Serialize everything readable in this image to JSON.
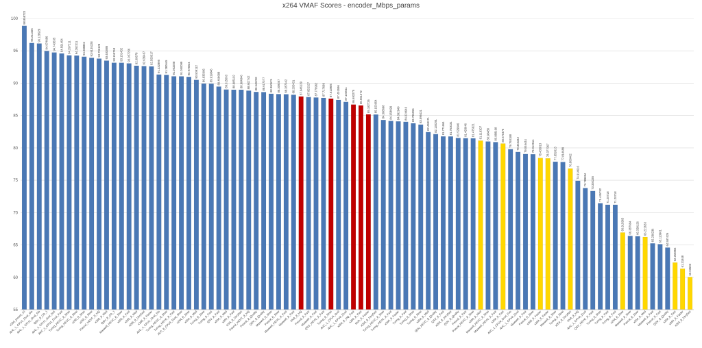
{
  "chart_data": {
    "type": "bar",
    "title": "x264 VMAF Scores - encoder_Mbps_params",
    "xlabel": "",
    "ylabel": "",
    "ylim": [
      55,
      100
    ],
    "yticks": [
      55,
      60,
      65,
      70,
      75,
      80,
      85,
      90,
      95,
      100
    ],
    "grid": true,
    "legend": "none",
    "colors": {
      "blue": "#4a78b5",
      "red": "#c00000",
      "yellow": "#ffd700"
    },
    "bars": [
      {
        "label": "x264_preset_10",
        "value": 98.858723,
        "value_text": "98.858723",
        "color": "blue"
      },
      {
        "label": "AVC_1_CPU1_Dual_Slo",
        "value": 96.211405,
        "value_text": "96.211405",
        "color": "blue"
      },
      {
        "label": "AVC_1_CPU1_Dual_Slo",
        "value": 96.128929,
        "value_text": "96.128929",
        "color": "blue"
      },
      {
        "label": "QSV_8_CD_1",
        "value": 94.974686,
        "value_text": "94.974686",
        "color": "blue"
      },
      {
        "label": "AVC_1_CPU1_dual_fast",
        "value": 94.743635,
        "value_text": "94.743635",
        "color": "blue"
      },
      {
        "label": "AVC_1_CPU1_Dual_Fast",
        "value": 94.591454,
        "value_text": "94.591454",
        "color": "blue"
      },
      {
        "label": "Turing_HEVC_8_Slow",
        "value": 94.297211,
        "value_text": "94.297211",
        "color": "blue"
      },
      {
        "label": "Turing_HEVC_8_Slow",
        "value": 94.262311,
        "value_text": "94.262311",
        "color": "blue"
      },
      {
        "label": "x265_8_Slow",
        "value": 94.088804,
        "value_text": "94.088804",
        "color": "blue"
      },
      {
        "label": "x265_8_Slow",
        "value": 93.9135328,
        "value_text": "93.9135328",
        "color": "blue"
      },
      {
        "label": "Pascal_HEVC_8_HQ",
        "value": 93.796128,
        "value_text": "93.796128",
        "color": "blue"
      },
      {
        "label": "x265_8_Med",
        "value": 93.483885,
        "value_text": "93.483885",
        "color": "blue"
      },
      {
        "label": "QSV_8_CD_1",
        "value": 93.155763,
        "value_text": "93.155763",
        "color": "blue"
      },
      {
        "label": "Maxwell_HEVC_8_Slow",
        "value": 93.151432,
        "value_text": "93.151432",
        "color": "blue"
      },
      {
        "label": "x265_8_Fast",
        "value": 93.057256,
        "value_text": "93.057256",
        "color": "blue"
      },
      {
        "label": "x265_8_Med",
        "value": 92.69678,
        "value_text": "92.69678",
        "color": "blue"
      },
      {
        "label": "x265_8_Veryfast",
        "value": 92.636467,
        "value_text": "92.636467",
        "color": "blue"
      },
      {
        "label": "x265_8_Faster",
        "value": 92.593317,
        "value_text": "92.593317",
        "color": "blue"
      },
      {
        "label": "AVC_1_CPU1_Dual_Slo",
        "value": 91.332895,
        "value_text": "91.332895",
        "color": "blue"
      },
      {
        "label": "Turing_HEVC_8_Slow",
        "value": 91.280645,
        "value_text": "91.280645",
        "color": "blue"
      },
      {
        "label": "Turing_HEVC_8_Fast",
        "value": 91.053208,
        "value_text": "91.053208",
        "color": "blue"
      },
      {
        "label": "AVC_8_CPU4_Dual_Slow",
        "value": 91.050099,
        "value_text": "91.050099",
        "color": "blue"
      },
      {
        "label": "x264_8_Slow",
        "value": 90.973824,
        "value_text": "90.973824",
        "color": "blue"
      },
      {
        "label": "x264_8_Med",
        "value": 90.509112,
        "value_text": "90.509112",
        "color": "blue"
      },
      {
        "label": "Turing_8_Slow",
        "value": 89.935696,
        "value_text": "89.935696",
        "color": "blue"
      },
      {
        "label": "Turing_8_Fast",
        "value": 89.919846,
        "value_text": "89.919846",
        "color": "blue"
      },
      {
        "label": "QSV_8_Fast",
        "value": 89.468688,
        "value_text": "89.468688",
        "color": "blue"
      },
      {
        "label": "x264_8_Med",
        "value": 89.015063,
        "value_text": "89.015063",
        "color": "blue"
      },
      {
        "label": "x264_8_Fast",
        "value": 88.985102,
        "value_text": "88.985102",
        "color": "blue"
      },
      {
        "label": "NVA_8_Veryfast",
        "value": 88.984846,
        "value_text": "88.984846",
        "color": "blue"
      },
      {
        "label": "Pascal_HEVC_8_HQ",
        "value": 88.842742,
        "value_text": "88.842742",
        "color": "blue"
      },
      {
        "label": "Pascal_8_Quality",
        "value": 88.645228,
        "value_text": "88.645228",
        "color": "blue"
      },
      {
        "label": "QSV_8_Quality",
        "value": 88.617377,
        "value_text": "88.617377",
        "color": "blue"
      },
      {
        "label": "Maxwell_8_Slow",
        "value": 88.360676,
        "value_text": "88.360676",
        "color": "blue"
      },
      {
        "label": "Pascal_8_Slow",
        "value": 88.309357,
        "value_text": "88.309357",
        "color": "blue"
      },
      {
        "label": "Maxwell_HEVC_8_Fast",
        "value": 88.287042,
        "value_text": "88.287042",
        "color": "blue"
      },
      {
        "label": "Maxwell_8_Fast",
        "value": 88.205431,
        "value_text": "88.205431",
        "color": "blue"
      },
      {
        "label": "NVA_8_HQ",
        "value": 87.946139,
        "value_text": "87.946139",
        "color": "red"
      },
      {
        "label": "Pascal_8_Fast",
        "value": 87.852327,
        "value_text": "87.852327",
        "color": "blue"
      },
      {
        "label": "Maxwell_8_Fast",
        "value": 87.779962,
        "value_text": "87.779962",
        "color": "blue"
      },
      {
        "label": "QSV_HEVC_8_Fast",
        "value": 87.717689,
        "value_text": "87.717689",
        "color": "blue"
      },
      {
        "label": "Turing_8_Slow",
        "value": 87.613986,
        "value_text": "87.613986",
        "color": "red"
      },
      {
        "label": "AVC_1_CPU4_dual",
        "value": 87.401596,
        "value_text": "87.401596",
        "color": "blue"
      },
      {
        "label": "AVC_1_CPU4_Dual",
        "value": 87.103511,
        "value_text": "87.103511",
        "color": "blue"
      },
      {
        "label": "x264_8_HQ_Fast",
        "value": 86.693275,
        "value_text": "86.693275",
        "color": "red"
      },
      {
        "label": "x264_8_Fast",
        "value": 86.561272,
        "value_text": "86.561272",
        "color": "red"
      },
      {
        "label": "NVA_8_Faster",
        "value": 85.182726,
        "value_text": "85.182726",
        "color": "red"
      },
      {
        "label": "x264_8_Veryfast",
        "value": 85.153654,
        "value_text": "85.153654",
        "color": "blue"
      },
      {
        "label": "Turing_HEVC_8_Slow",
        "value": 84.308698,
        "value_text": "84.308698",
        "color": "blue"
      },
      {
        "label": "Turing_HEVC_8_Fast",
        "value": 84.158699,
        "value_text": "84.158699",
        "color": "blue"
      },
      {
        "label": "x264_8_Faster",
        "value": 84.092949,
        "value_text": "84.092949",
        "color": "blue"
      },
      {
        "label": "Turing_8_Fast",
        "value": 84.024646,
        "value_text": "84.024646",
        "color": "blue"
      },
      {
        "label": "Turing_8_Slow",
        "value": 83.796055,
        "value_text": "83.796055",
        "color": "blue"
      },
      {
        "label": "Turing_8_Slow",
        "value": 83.596431,
        "value_text": "83.596431",
        "color": "blue"
      },
      {
        "label": "x264_8_Med",
        "value": 82.438171,
        "value_text": "82.438171",
        "color": "blue"
      },
      {
        "label": "QSV_HEVC_8_Quality",
        "value": 82.130291,
        "value_text": "82.130291",
        "color": "blue"
      },
      {
        "label": "QSV_8_Fast",
        "value": 81.771664,
        "value_text": "81.771664",
        "color": "blue"
      },
      {
        "label": "x264_8_Veryfast",
        "value": 81.763031,
        "value_text": "81.763031",
        "color": "blue"
      },
      {
        "label": "QSV_8_Quality",
        "value": 81.529846,
        "value_text": "81.529846",
        "color": "blue"
      },
      {
        "label": "Pascal_8_Fast",
        "value": 81.493646,
        "value_text": "81.493646",
        "color": "blue"
      },
      {
        "label": "Pascal_HEVC_8_Slow",
        "value": 81.475921,
        "value_text": "81.475921",
        "color": "blue"
      },
      {
        "label": "x264_8_Med",
        "value": 81.119307,
        "value_text": "81.119307",
        "color": "yellow"
      },
      {
        "label": "Maxwell_HEVC_8_Slow",
        "value": 80.98488,
        "value_text": "80.98488",
        "color": "blue"
      },
      {
        "label": "Maxwell_HEVC_8_Fast",
        "value": 80.888198,
        "value_text": "80.888198",
        "color": "blue"
      },
      {
        "label": "x264_8_Fast",
        "value": 80.670476,
        "value_text": "80.670476",
        "color": "yellow"
      },
      {
        "label": "AVC_1_CPU4_Dual_Fas",
        "value": 79.793188,
        "value_text": "79.793188",
        "color": "blue"
      },
      {
        "label": "AVC_1_CPU4_Dual",
        "value": 79.365342,
        "value_text": "79.365342",
        "color": "blue"
      },
      {
        "label": "Maxwell_8_Fast",
        "value": 79.046444,
        "value_text": "79.046444",
        "color": "blue"
      },
      {
        "label": "Pascal_8_Slow",
        "value": 79.012614,
        "value_text": "79.012614",
        "color": "blue"
      },
      {
        "label": "x265_8_Faster",
        "value": 78.435813,
        "value_text": "78.435813",
        "color": "yellow"
      },
      {
        "label": "x264_8_Faster",
        "value": 78.377067,
        "value_text": "78.377067",
        "color": "yellow"
      },
      {
        "label": "Maxwell_8_Slow",
        "value": 77.859313,
        "value_text": "77.859313",
        "color": "blue"
      },
      {
        "label": "Turing_8_Slow",
        "value": 77.814689,
        "value_text": "77.814689",
        "color": "blue"
      },
      {
        "label": "x264_8_Veryfast",
        "value": 76.808462,
        "value_text": "76.808462",
        "color": "yellow"
      },
      {
        "label": "NVA_8_HQ",
        "value": 74.914616,
        "value_text": "74.914616",
        "color": "blue"
      },
      {
        "label": "AVC_1_CPU4_Dual",
        "value": 73.789854,
        "value_text": "73.789854",
        "color": "blue"
      },
      {
        "label": "QSV_HEVC_8_Fast",
        "value": 73.330335,
        "value_text": "73.330335",
        "color": "blue"
      },
      {
        "label": "Turing_8_Slow",
        "value": 71.445752,
        "value_text": "71.445752",
        "color": "blue"
      },
      {
        "label": "Turing_8_Fast",
        "value": 71.20718,
        "value_text": "71.20718",
        "color": "blue"
      },
      {
        "label": "Turing_8_Fast",
        "value": 71.20718,
        "value_text": "71.20718",
        "color": "blue"
      },
      {
        "label": "x264_8_Slow",
        "value": 66.915965,
        "value_text": "66.915965",
        "color": "yellow"
      },
      {
        "label": "Maxwell_8_Slow",
        "value": 66.387664,
        "value_text": "66.387664",
        "color": "blue"
      },
      {
        "label": "Pascal_8_Slow",
        "value": 66.338126,
        "value_text": "66.338126",
        "color": "blue"
      },
      {
        "label": "x264_8_Med",
        "value": 66.222633,
        "value_text": "66.222633",
        "color": "yellow"
      },
      {
        "label": "Maxwell_8_Fast",
        "value": 65.238236,
        "value_text": "65.238236",
        "color": "blue"
      },
      {
        "label": "Pascal_8_Fast",
        "value": 65.113901,
        "value_text": "65.113901",
        "color": "blue"
      },
      {
        "label": "QSV_8_Quality",
        "value": 64.587426,
        "value_text": "64.587426",
        "color": "blue"
      },
      {
        "label": "x264_8_Fast",
        "value": 62.269866,
        "value_text": "62.269866",
        "color": "yellow"
      },
      {
        "label": "x264_8_Faster",
        "value": 61.31848,
        "value_text": "61.31848",
        "color": "yellow"
      },
      {
        "label": "x264_8_Veryfast",
        "value": 60.03693,
        "value_text": "60.03693",
        "color": "yellow"
      }
    ]
  }
}
